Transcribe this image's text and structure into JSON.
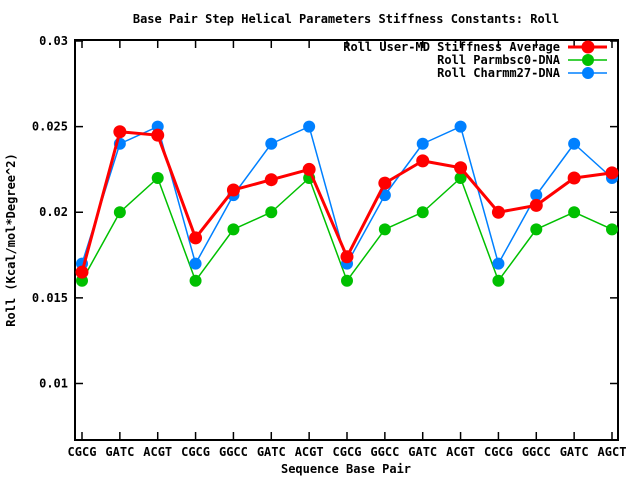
{
  "window": {
    "background": "#ffffff",
    "border_color": "#000000",
    "text_color": "#000000"
  },
  "chart_data": {
    "type": "line",
    "title": "Base Pair Step Helical Parameters Stiffness Constants: Roll",
    "xlabel": "Sequence Base Pair",
    "ylabel": "Roll (Kcal/mol*Degree^2)",
    "categories": [
      "CGCG",
      "GATC",
      "ACGT",
      "CGCG",
      "GGCC",
      "GATC",
      "ACGT",
      "CGCG",
      "GGCC",
      "GATC",
      "ACGT",
      "CGCG",
      "GGCC",
      "GATC",
      "AGCT"
    ],
    "ylim": [
      0.0067,
      0.03
    ],
    "yticks": [
      0.01,
      0.015,
      0.02,
      0.025,
      0.03
    ],
    "ytick_labels": [
      "0.01",
      "0.015",
      "0.02",
      "0.025",
      "0.03"
    ],
    "grid": false,
    "legend_position": "top-right-inside",
    "marker": "filled-circle",
    "series": [
      {
        "name": "Roll User-MD Stiffness Average",
        "color": "#ff0000",
        "line_width": 3,
        "marker_radius": 6.5,
        "values": [
          0.0165,
          0.0247,
          0.0245,
          0.0185,
          0.0213,
          0.0219,
          0.0225,
          0.0174,
          0.0217,
          0.023,
          0.0226,
          0.02,
          0.0204,
          0.022,
          0.0223
        ]
      },
      {
        "name": "Roll Parmbsc0-DNA",
        "color": "#00c000",
        "line_width": 1.5,
        "marker_radius": 6,
        "values": [
          0.016,
          0.02,
          0.022,
          0.016,
          0.019,
          0.02,
          0.022,
          0.016,
          0.019,
          0.02,
          0.022,
          0.016,
          0.019,
          0.02,
          0.019
        ]
      },
      {
        "name": "Roll Charmm27-DNA",
        "color": "#0080ff",
        "line_width": 1.5,
        "marker_radius": 6,
        "values": [
          0.017,
          0.024,
          0.025,
          0.017,
          0.021,
          0.024,
          0.025,
          0.017,
          0.021,
          0.024,
          0.025,
          0.017,
          0.021,
          0.024,
          0.022
        ]
      }
    ]
  }
}
